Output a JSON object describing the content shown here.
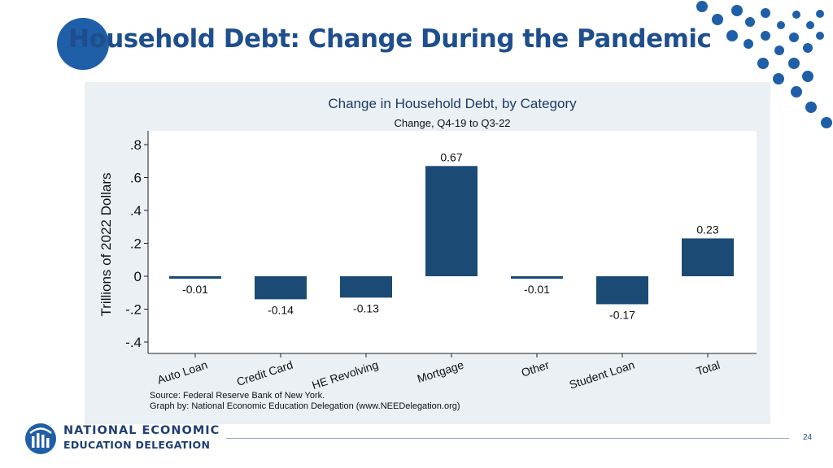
{
  "slide": {
    "title": "Household Debt: Change During the Pandemic",
    "page_number": "24",
    "accent_color": "#1f5fa8"
  },
  "logo": {
    "line1": "NATIONAL ECONOMIC",
    "line2": "EDUCATION DELEGATION"
  },
  "chart_data": {
    "type": "bar",
    "title": "Change in Household Debt, by Category",
    "subtitle": "Change, Q4-19 to Q3-22",
    "ylabel": "Trillions of 2022 Dollars",
    "xlabel": "",
    "categories": [
      "Auto Loan",
      "Credit Card",
      "HE Revolving",
      "Mortgage",
      "Other",
      "Student Loan",
      "Total"
    ],
    "values": [
      -0.01,
      -0.14,
      -0.13,
      0.67,
      -0.01,
      -0.17,
      0.23
    ],
    "value_labels": [
      "-0.01",
      "-0.14",
      "-0.13",
      "0.67",
      "-0.01",
      "-0.17",
      "0.23"
    ],
    "ylim": [
      -0.4,
      0.8
    ],
    "yticks": [
      0.8,
      0.6,
      0.4,
      0.2,
      0,
      -0.2,
      -0.4
    ],
    "ytick_labels": [
      ".8",
      ".6",
      ".4",
      ".2",
      "0",
      "-.2",
      "-.4"
    ],
    "grid": false,
    "bar_color": "#1b4a75",
    "source_lines": [
      "Source: Federal Reserve Bank of New York.",
      "Graph by: National Economic Education Delegation (www.NEEDelegation.org)"
    ]
  }
}
